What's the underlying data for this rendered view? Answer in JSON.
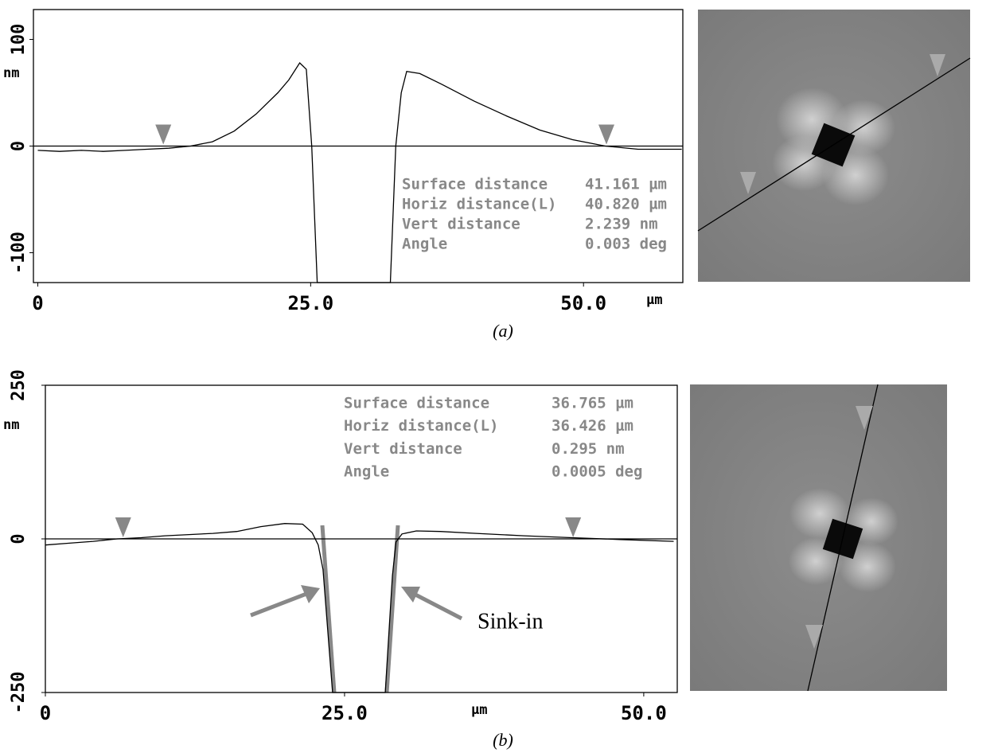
{
  "chart_data": [
    {
      "type": "line",
      "caption": "(a)",
      "ylabel": "nm",
      "xlabel": "µm",
      "xlim": [
        -0.4,
        59.1
      ],
      "ylim": [
        -128,
        128
      ],
      "xticks": [
        0,
        {
          "value": 25,
          "label": "25.0"
        },
        {
          "value": 50,
          "label": "50.0"
        }
      ],
      "yticks": [
        -100,
        0,
        100
      ],
      "x": [
        0,
        2,
        4,
        6,
        8,
        10,
        12,
        14,
        16,
        18,
        20,
        22,
        23,
        24,
        24.6,
        25.1,
        25.6,
        32.3,
        32.8,
        33.3,
        33.8,
        35,
        37,
        40,
        43,
        46,
        49,
        52,
        55,
        59
      ],
      "series": [
        {
          "color": "#000000",
          "values": [
            -4,
            -5,
            -4,
            -5,
            -4,
            -3,
            -2,
            0,
            4,
            14,
            30,
            50,
            62,
            78,
            72,
            0,
            -128,
            -128,
            0,
            50,
            70,
            68,
            58,
            42,
            28,
            15,
            6,
            0,
            -3,
            -3
          ]
        }
      ],
      "cursors": [
        11.5,
        52.1
      ],
      "stats": [
        {
          "label": "Surface distance",
          "value": "41.161 µm"
        },
        {
          "label": "Horiz distance(L)",
          "value": "40.820 µm"
        },
        {
          "label": "Vert distance",
          "value": "2.239 nm"
        },
        {
          "label": "Angle",
          "value": "0.003 deg"
        }
      ]
    },
    {
      "type": "line",
      "caption": "(b)",
      "ylabel": "nm",
      "xlabel": "µm",
      "annotation": "Sink-in",
      "xlim": [
        0,
        52.8
      ],
      "ylim": [
        -250,
        250
      ],
      "xticks": [
        0,
        {
          "value": 25,
          "label": "25.0"
        },
        {
          "value": 50,
          "label": "50.0"
        }
      ],
      "yticks": [
        -250,
        0,
        250
      ],
      "x": [
        0,
        2,
        4,
        6,
        8,
        10,
        12,
        14,
        16,
        18,
        20,
        21.5,
        22.3,
        22.8,
        23.2,
        24,
        28.4,
        29.0,
        29.3,
        29.8,
        31,
        33,
        36,
        40,
        44,
        48,
        52.5
      ],
      "series": [
        {
          "color": "#000000",
          "values": [
            -10,
            -7,
            -4,
            0,
            2,
            5,
            7,
            9,
            12,
            20,
            25,
            24,
            10,
            -10,
            -50,
            -250,
            -250,
            -60,
            -5,
            8,
            13,
            12,
            9,
            5,
            2,
            -1,
            -4
          ]
        }
      ],
      "cursors": [
        6.5,
        44.1
      ],
      "stats": [
        {
          "label": "Surface distance",
          "value": "36.765 µm"
        },
        {
          "label": "Horiz distance(L)",
          "value": "36.426 µm"
        },
        {
          "label": "Vert distance",
          "value": "0.295 nm"
        },
        {
          "label": "Angle",
          "value": "0.0005 deg"
        }
      ]
    }
  ]
}
